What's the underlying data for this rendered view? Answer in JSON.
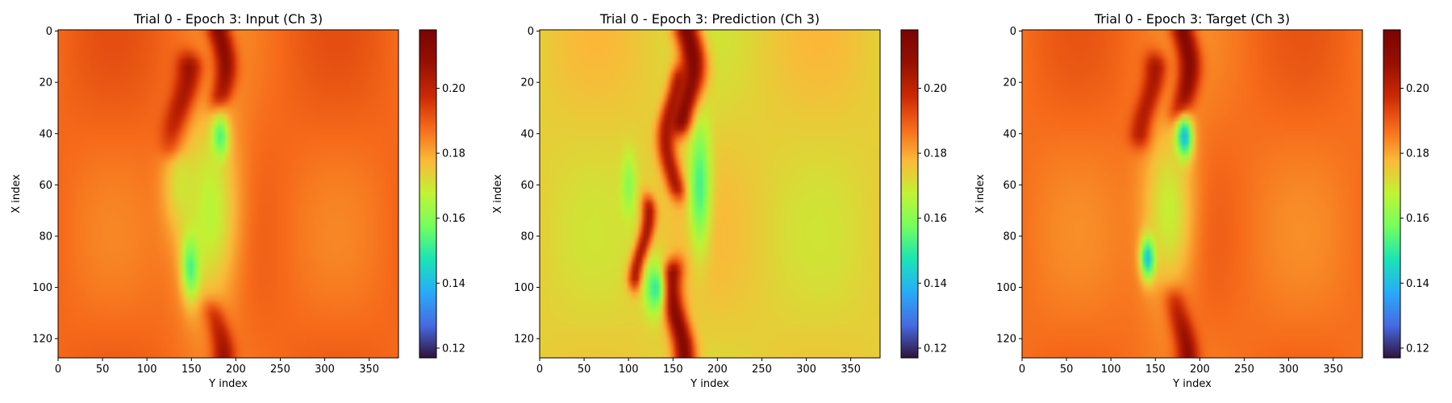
{
  "figure": {
    "colormap": "turbo",
    "axis_color": "#000000",
    "background": "#ffffff"
  },
  "chart_data": [
    {
      "type": "heatmap",
      "title": "Trial 0 - Epoch 3: Input (Ch 3)",
      "xlabel": "Y index",
      "ylabel": "X index",
      "xlim": [
        0,
        383
      ],
      "ylim": [
        127,
        0
      ],
      "xticks": [
        0,
        50,
        100,
        150,
        200,
        250,
        300,
        350
      ],
      "yticks": [
        0,
        20,
        40,
        60,
        80,
        100,
        120
      ],
      "colorbar": {
        "vmin": 0.117,
        "vmax": 0.218,
        "ticks": [
          0.12,
          0.14,
          0.16,
          0.18,
          0.2
        ],
        "tick_labels": [
          "0.12",
          "0.14",
          "0.16",
          "0.18",
          "0.20"
        ]
      },
      "background_value": 0.188,
      "features": [
        {
          "kind": "ridge",
          "cx": 180,
          "y0": 0,
          "y1": 25,
          "wx": 12,
          "value": 0.215
        },
        {
          "kind": "ridge",
          "cx": 140,
          "y0": 15,
          "y1": 45,
          "wx": 14,
          "value": 0.212
        },
        {
          "kind": "ridge",
          "cx": 178,
          "y0": 110,
          "y1": 127,
          "wx": 12,
          "value": 0.212
        },
        {
          "kind": "blob",
          "cx": 182,
          "cy": 42,
          "rx": 9,
          "ry": 8,
          "value": 0.138
        },
        {
          "kind": "blob",
          "cx": 150,
          "cy": 90,
          "rx": 10,
          "ry": 13,
          "value": 0.135
        },
        {
          "kind": "blob",
          "cx": 170,
          "cy": 70,
          "rx": 35,
          "ry": 40,
          "value": 0.166
        },
        {
          "kind": "blob",
          "cx": 140,
          "cy": 60,
          "rx": 20,
          "ry": 18,
          "value": 0.17
        }
      ]
    },
    {
      "type": "heatmap",
      "title": "Trial 0 - Epoch 3: Prediction (Ch 3)",
      "xlabel": "Y index",
      "ylabel": "X index",
      "xlim": [
        0,
        383
      ],
      "ylim": [
        127,
        0
      ],
      "xticks": [
        0,
        50,
        100,
        150,
        200,
        250,
        300,
        350
      ],
      "yticks": [
        0,
        20,
        40,
        60,
        80,
        100,
        120
      ],
      "colorbar": {
        "vmin": 0.117,
        "vmax": 0.218,
        "ticks": [
          0.12,
          0.14,
          0.16,
          0.18,
          0.2
        ],
        "tick_labels": [
          "0.12",
          "0.14",
          "0.16",
          "0.18",
          "0.20"
        ]
      },
      "background_value": 0.174,
      "features": [
        {
          "kind": "ridge",
          "cx": 165,
          "y0": 0,
          "y1": 35,
          "wx": 14,
          "value": 0.216
        },
        {
          "kind": "ridge",
          "cx": 150,
          "y0": 20,
          "y1": 60,
          "wx": 10,
          "value": 0.205
        },
        {
          "kind": "ridge",
          "cx": 115,
          "y0": 70,
          "y1": 95,
          "wx": 8,
          "value": 0.205
        },
        {
          "kind": "ridge",
          "cx": 155,
          "y0": 95,
          "y1": 127,
          "wx": 12,
          "value": 0.214
        },
        {
          "kind": "blob",
          "cx": 180,
          "cy": 60,
          "rx": 12,
          "ry": 25,
          "value": 0.152
        },
        {
          "kind": "blob",
          "cx": 130,
          "cy": 100,
          "rx": 12,
          "ry": 10,
          "value": 0.15
        },
        {
          "kind": "blob",
          "cx": 100,
          "cy": 60,
          "rx": 8,
          "ry": 12,
          "value": 0.16
        }
      ]
    },
    {
      "type": "heatmap",
      "title": "Trial 0 - Epoch 3: Target (Ch 3)",
      "xlabel": "Y index",
      "ylabel": "X index",
      "xlim": [
        0,
        383
      ],
      "ylim": [
        127,
        0
      ],
      "xticks": [
        0,
        50,
        100,
        150,
        200,
        250,
        300,
        350
      ],
      "yticks": [
        0,
        20,
        40,
        60,
        80,
        100,
        120
      ],
      "colorbar": {
        "vmin": 0.117,
        "vmax": 0.218,
        "ticks": [
          0.12,
          0.14,
          0.16,
          0.18,
          0.2
        ],
        "tick_labels": [
          "0.12",
          "0.14",
          "0.16",
          "0.18",
          "0.20"
        ]
      },
      "background_value": 0.187,
      "features": [
        {
          "kind": "ridge",
          "cx": 180,
          "y0": 0,
          "y1": 30,
          "wx": 12,
          "value": 0.215
        },
        {
          "kind": "ridge",
          "cx": 142,
          "y0": 15,
          "y1": 40,
          "wx": 12,
          "value": 0.208
        },
        {
          "kind": "ridge",
          "cx": 178,
          "y0": 105,
          "y1": 127,
          "wx": 12,
          "value": 0.212
        },
        {
          "kind": "blob",
          "cx": 182,
          "cy": 42,
          "rx": 9,
          "ry": 8,
          "value": 0.122
        },
        {
          "kind": "blob",
          "cx": 142,
          "cy": 88,
          "rx": 8,
          "ry": 8,
          "value": 0.122
        },
        {
          "kind": "blob",
          "cx": 165,
          "cy": 70,
          "rx": 30,
          "ry": 35,
          "value": 0.168
        }
      ]
    }
  ]
}
